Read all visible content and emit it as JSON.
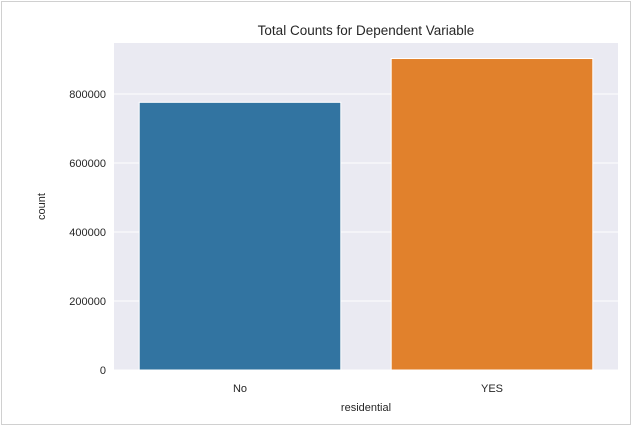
{
  "chart_data": {
    "type": "bar",
    "title": "Total Counts for Dependent Variable",
    "xlabel": "residential",
    "ylabel": "count",
    "categories": [
      "No",
      "YES"
    ],
    "values": [
      776000,
      903000
    ],
    "colors": [
      "#3274a1",
      "#e1812c"
    ],
    "yticks": [
      0,
      200000,
      400000,
      600000,
      800000
    ],
    "ytick_labels": [
      "0",
      "200000",
      "400000",
      "600000",
      "800000"
    ],
    "ylim": [
      0,
      948000
    ],
    "grid": true,
    "background": "#eaeaf2",
    "legend": "none"
  }
}
